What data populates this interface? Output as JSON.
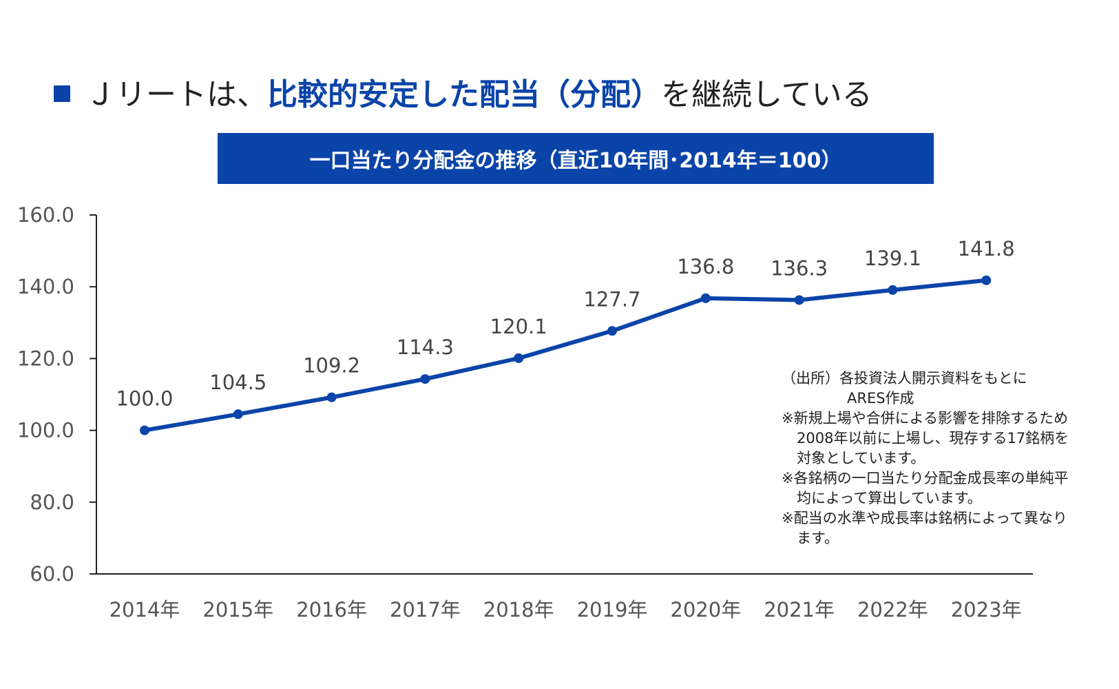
{
  "headline": {
    "prefix": "Ｊリートは、",
    "highlight": "比較的安定した配当（分配）",
    "suffix": "を継続している"
  },
  "chart_data": {
    "type": "line",
    "title": "一口当たり分配金の推移（直近10年間･2014年＝100）",
    "categories": [
      "2014年",
      "2015年",
      "2016年",
      "2017年",
      "2018年",
      "2019年",
      "2020年",
      "2021年",
      "2022年",
      "2023年"
    ],
    "values": [
      100.0,
      104.5,
      109.2,
      114.3,
      120.1,
      127.7,
      136.8,
      136.3,
      139.1,
      141.8
    ],
    "data_labels": [
      "100.0",
      "104.5",
      "109.2",
      "114.3",
      "120.1",
      "127.7",
      "136.8",
      "136.3",
      "139.1",
      "141.8"
    ],
    "y_ticks": [
      "160.0",
      "140.0",
      "120.0",
      "100.0",
      "80.0",
      "60.0"
    ],
    "ylim": [
      60,
      160
    ],
    "grid": false,
    "line_color": "#0b44a8"
  },
  "notes": {
    "source_label": "（出所）",
    "source_text": "各投資法人開示資料をもとに",
    "source_text2": "ARES作成",
    "note1_a": "※新規上場や合併による影響を排除するため",
    "note1_b": "2008年以前に上場し、現存する17銘柄を",
    "note1_c": "対象としています。",
    "note2_a": "※各銘柄の一口当たり分配金成長率の単純平",
    "note2_b": "均によって算出しています。",
    "note3_a": "※配当の水準や成長率は銘柄によって異なり",
    "note3_b": "ます。"
  }
}
